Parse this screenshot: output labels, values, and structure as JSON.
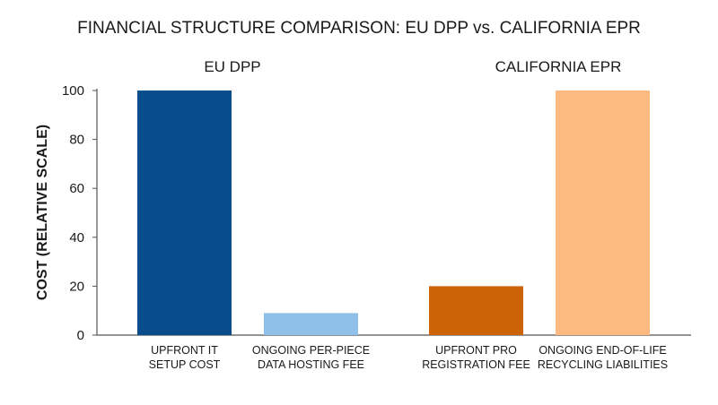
{
  "chart_data": {
    "type": "bar",
    "title": "FINANCIAL STRUCTURE COMPARISON: EU DPP vs. CALIFORNIA EPR",
    "ylabel": "COST (RELATIVE SCALE)",
    "xlabel": "",
    "ylim": [
      0,
      100
    ],
    "yticks": [
      0,
      20,
      40,
      60,
      80,
      100
    ],
    "grid": false,
    "legend": "none",
    "groups": [
      {
        "name": "EU DPP",
        "bars": [
          {
            "label_lines": [
              "UPFRONT IT",
              "SETUP COST"
            ],
            "value": 100,
            "color": "#0a4d8c"
          },
          {
            "label_lines": [
              "ONGOING PER-PIECE",
              "DATA HOSTING FEE"
            ],
            "value": 9,
            "color": "#8ec0ea"
          }
        ]
      },
      {
        "name": "CALIFORNIA EPR",
        "bars": [
          {
            "label_lines": [
              "UPFRONT PRO",
              "REGISTRATION FEE"
            ],
            "value": 20,
            "color": "#cc6306"
          },
          {
            "label_lines": [
              "ONGOING END-OF-LIFE",
              "RECYCLING LIABILITIES"
            ],
            "value": 100,
            "color": "#fdba80"
          }
        ]
      }
    ]
  }
}
